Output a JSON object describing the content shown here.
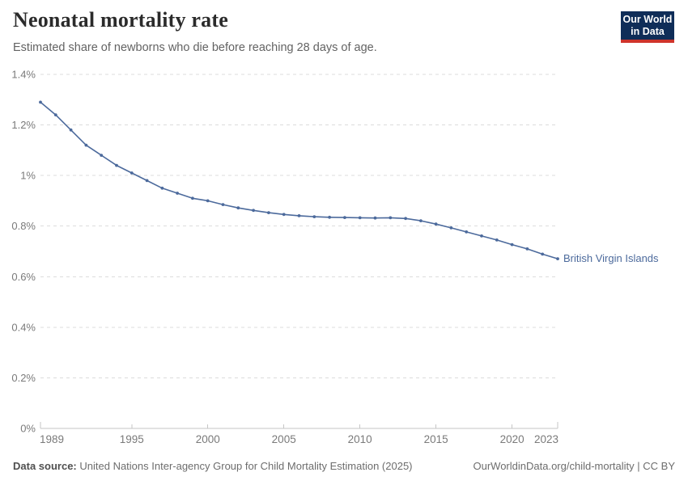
{
  "header": {
    "title": "Neonatal mortality rate",
    "subtitle": "Estimated share of newborns who die before reaching 28 days of age.",
    "logo": {
      "line1": "Our World",
      "line2": "in Data",
      "bg_color": "#0f2d58",
      "accent_color": "#cf342b"
    }
  },
  "chart_data": {
    "type": "line",
    "title": "Neonatal mortality rate",
    "subtitle": "Estimated share of newborns who die before reaching 28 days of age.",
    "entity": "British Virgin Islands",
    "unit": "%",
    "x": [
      1989,
      1990,
      1991,
      1992,
      1993,
      1994,
      1995,
      1996,
      1997,
      1998,
      1999,
      2000,
      2001,
      2002,
      2003,
      2004,
      2005,
      2006,
      2007,
      2008,
      2009,
      2010,
      2011,
      2012,
      2013,
      2014,
      2015,
      2016,
      2017,
      2018,
      2019,
      2020,
      2021,
      2022,
      2023
    ],
    "values": [
      1.29,
      1.24,
      1.18,
      1.12,
      1.08,
      1.04,
      1.01,
      0.98,
      0.95,
      0.93,
      0.91,
      0.9,
      0.885,
      0.872,
      0.862,
      0.853,
      0.846,
      0.841,
      0.837,
      0.835,
      0.834,
      0.833,
      0.832,
      0.833,
      0.83,
      0.821,
      0.808,
      0.793,
      0.777,
      0.761,
      0.745,
      0.727,
      0.71,
      0.689,
      0.671
    ],
    "xlim": [
      1989,
      2023
    ],
    "ylim": [
      0,
      1.4
    ],
    "grid": true,
    "legend_position": "end-of-line",
    "y_ticks": [
      {
        "value": 1.4,
        "label": "1.4%"
      },
      {
        "value": 1.2,
        "label": "1.2%"
      },
      {
        "value": 1.0,
        "label": "1%"
      },
      {
        "value": 0.8,
        "label": "0.8%"
      },
      {
        "value": 0.6,
        "label": "0.6%"
      },
      {
        "value": 0.4,
        "label": "0.4%"
      },
      {
        "value": 0.2,
        "label": "0.2%"
      },
      {
        "value": 0.0,
        "label": "0%"
      }
    ],
    "x_ticks": [
      {
        "value": 1989,
        "label": "1989"
      },
      {
        "value": 1995,
        "label": "1995"
      },
      {
        "value": 2000,
        "label": "2000"
      },
      {
        "value": 2005,
        "label": "2005"
      },
      {
        "value": 2010,
        "label": "2010"
      },
      {
        "value": 2015,
        "label": "2015"
      },
      {
        "value": 2020,
        "label": "2020"
      },
      {
        "value": 2023,
        "label": "2023"
      }
    ],
    "line_color": "#4c6a9c",
    "grid_color": "#dcdcdc",
    "axis_color": "#c6c6c6",
    "tick_label_color": "#7a7a7a"
  },
  "footer": {
    "source_label": "Data source:",
    "source_text": "United Nations Inter-agency Group for Child Mortality Estimation (2025)",
    "link_text": "OurWorldinData.org/child-mortality | CC BY"
  }
}
